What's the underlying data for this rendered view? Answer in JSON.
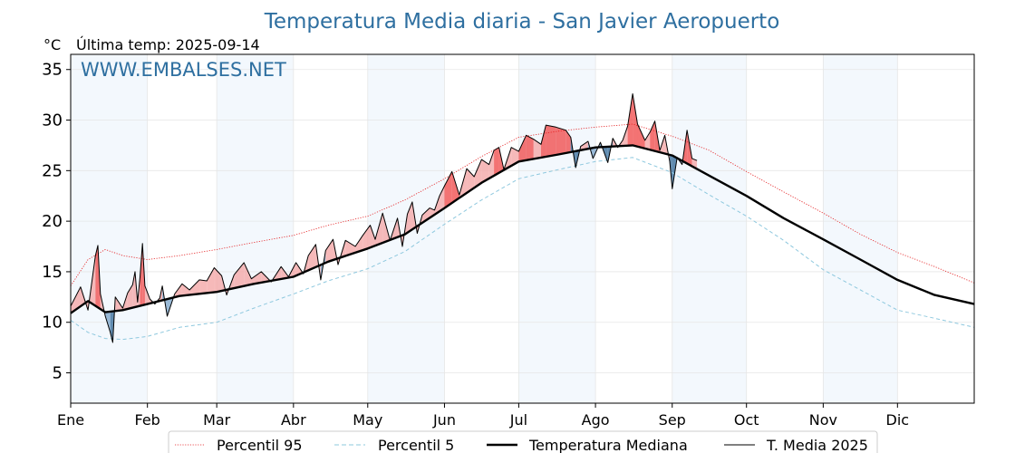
{
  "chart_data": {
    "type": "line",
    "title": "Temperatura Media diaria - San Javier Aeropuerto",
    "unit_label": "°C",
    "subtitle": "Última temp: 2025-09-14",
    "watermark": "WWW.EMBALSES.NET",
    "ylim": [
      2,
      36.5
    ],
    "yticks": [
      5,
      10,
      15,
      20,
      25,
      30,
      35
    ],
    "xlim": [
      1,
      366
    ],
    "months": [
      {
        "label": "Ene",
        "start": 1
      },
      {
        "label": "Feb",
        "start": 32
      },
      {
        "label": "Mar",
        "start": 60
      },
      {
        "label": "Abr",
        "start": 91
      },
      {
        "label": "May",
        "start": 121
      },
      {
        "label": "Jun",
        "start": 152
      },
      {
        "label": "Jul",
        "start": 182
      },
      {
        "label": "Ago",
        "start": 213
      },
      {
        "label": "Sep",
        "start": 244
      },
      {
        "label": "Oct",
        "start": 274
      },
      {
        "label": "Nov",
        "start": 305
      },
      {
        "label": "Dic",
        "start": 335
      }
    ],
    "grid": true,
    "legend_position": "bottom",
    "series": [
      {
        "name": "Percentil 95",
        "key": "p95",
        "style": "dotted",
        "color": "#e41a1c",
        "points": [
          [
            1,
            13.6
          ],
          [
            8,
            16.2
          ],
          [
            15,
            17.2
          ],
          [
            22,
            16.6
          ],
          [
            32,
            16.2
          ],
          [
            45,
            16.6
          ],
          [
            60,
            17.2
          ],
          [
            75,
            17.9
          ],
          [
            91,
            18.6
          ],
          [
            105,
            19.6
          ],
          [
            121,
            20.5
          ],
          [
            136,
            22.1
          ],
          [
            152,
            24.2
          ],
          [
            167,
            26.4
          ],
          [
            182,
            28.3
          ],
          [
            198,
            28.9
          ],
          [
            213,
            29.3
          ],
          [
            228,
            29.6
          ],
          [
            244,
            28.4
          ],
          [
            259,
            27.0
          ],
          [
            274,
            24.9
          ],
          [
            289,
            22.9
          ],
          [
            305,
            20.8
          ],
          [
            320,
            18.7
          ],
          [
            335,
            16.9
          ],
          [
            350,
            15.5
          ],
          [
            366,
            13.9
          ]
        ]
      },
      {
        "name": "Percentil 5",
        "key": "p5",
        "style": "dashed",
        "color": "#8ec8de",
        "points": [
          [
            1,
            10.2
          ],
          [
            8,
            9.0
          ],
          [
            15,
            8.4
          ],
          [
            22,
            8.3
          ],
          [
            32,
            8.6
          ],
          [
            45,
            9.5
          ],
          [
            60,
            10.0
          ],
          [
            75,
            11.4
          ],
          [
            91,
            12.8
          ],
          [
            105,
            14.1
          ],
          [
            121,
            15.3
          ],
          [
            136,
            17.0
          ],
          [
            152,
            19.7
          ],
          [
            167,
            22.1
          ],
          [
            182,
            24.2
          ],
          [
            198,
            25.1
          ],
          [
            213,
            25.9
          ],
          [
            228,
            26.3
          ],
          [
            244,
            24.8
          ],
          [
            259,
            22.6
          ],
          [
            274,
            20.5
          ],
          [
            289,
            18.1
          ],
          [
            305,
            15.2
          ],
          [
            320,
            13.2
          ],
          [
            335,
            11.2
          ],
          [
            350,
            10.4
          ],
          [
            366,
            9.5
          ]
        ]
      },
      {
        "name": "Temperatura Mediana",
        "key": "median",
        "style": "solid-thick",
        "color": "#000000",
        "points": [
          [
            1,
            10.9
          ],
          [
            8,
            12.1
          ],
          [
            15,
            11.0
          ],
          [
            22,
            11.2
          ],
          [
            32,
            11.8
          ],
          [
            45,
            12.6
          ],
          [
            60,
            13.0
          ],
          [
            75,
            13.8
          ],
          [
            91,
            14.5
          ],
          [
            105,
            16.0
          ],
          [
            121,
            17.3
          ],
          [
            136,
            18.7
          ],
          [
            152,
            21.3
          ],
          [
            167,
            23.8
          ],
          [
            182,
            25.9
          ],
          [
            198,
            26.6
          ],
          [
            213,
            27.3
          ],
          [
            228,
            27.5
          ],
          [
            244,
            26.5
          ],
          [
            259,
            24.5
          ],
          [
            274,
            22.5
          ],
          [
            289,
            20.3
          ],
          [
            305,
            18.2
          ],
          [
            320,
            16.2
          ],
          [
            335,
            14.2
          ],
          [
            350,
            12.7
          ],
          [
            366,
            11.8
          ]
        ]
      },
      {
        "name": "T. Media 2025",
        "key": "y2025",
        "style": "solid-thin",
        "color": "#000000",
        "points": [
          [
            1,
            11.6
          ],
          [
            5,
            13.5
          ],
          [
            8,
            11.2
          ],
          [
            11,
            16.6
          ],
          [
            12,
            17.6
          ],
          [
            13,
            12.8
          ],
          [
            15,
            10.6
          ],
          [
            17,
            9.0
          ],
          [
            18,
            8.0
          ],
          [
            19,
            12.5
          ],
          [
            22,
            11.4
          ],
          [
            24,
            12.9
          ],
          [
            26,
            13.7
          ],
          [
            27,
            15.0
          ],
          [
            28,
            12.0
          ],
          [
            29,
            14.5
          ],
          [
            30,
            17.8
          ],
          [
            31,
            13.6
          ],
          [
            33,
            12.3
          ],
          [
            35,
            11.8
          ],
          [
            37,
            12.4
          ],
          [
            38,
            13.6
          ],
          [
            40,
            10.6
          ],
          [
            43,
            12.8
          ],
          [
            46,
            13.8
          ],
          [
            49,
            13.2
          ],
          [
            53,
            14.2
          ],
          [
            56,
            14.1
          ],
          [
            59,
            15.4
          ],
          [
            62,
            14.6
          ],
          [
            64,
            12.7
          ],
          [
            67,
            14.7
          ],
          [
            71,
            15.9
          ],
          [
            74,
            14.3
          ],
          [
            78,
            15.0
          ],
          [
            82,
            14.0
          ],
          [
            86,
            15.5
          ],
          [
            89,
            14.5
          ],
          [
            92,
            15.9
          ],
          [
            95,
            14.8
          ],
          [
            97,
            16.6
          ],
          [
            100,
            17.7
          ],
          [
            102,
            14.2
          ],
          [
            104,
            17.1
          ],
          [
            107,
            18.2
          ],
          [
            109,
            15.7
          ],
          [
            112,
            18.1
          ],
          [
            116,
            17.5
          ],
          [
            119,
            18.6
          ],
          [
            122,
            19.6
          ],
          [
            124,
            18.2
          ],
          [
            127,
            20.8
          ],
          [
            130,
            18.1
          ],
          [
            133,
            20.3
          ],
          [
            135,
            17.5
          ],
          [
            137,
            20.7
          ],
          [
            139,
            21.9
          ],
          [
            141,
            18.8
          ],
          [
            143,
            20.6
          ],
          [
            146,
            21.3
          ],
          [
            148,
            21.1
          ],
          [
            150,
            22.5
          ],
          [
            152,
            23.5
          ],
          [
            155,
            24.9
          ],
          [
            158,
            22.6
          ],
          [
            161,
            25.2
          ],
          [
            164,
            24.4
          ],
          [
            167,
            26.1
          ],
          [
            170,
            25.6
          ],
          [
            172,
            27.0
          ],
          [
            174,
            27.3
          ],
          [
            176,
            25.1
          ],
          [
            179,
            27.3
          ],
          [
            182,
            26.9
          ],
          [
            185,
            28.5
          ],
          [
            188,
            28.1
          ],
          [
            191,
            27.6
          ],
          [
            193,
            29.5
          ],
          [
            197,
            29.3
          ],
          [
            201,
            29.0
          ],
          [
            203,
            28.3
          ],
          [
            205,
            25.3
          ],
          [
            207,
            27.4
          ],
          [
            210,
            27.9
          ],
          [
            212,
            26.2
          ],
          [
            215,
            27.8
          ],
          [
            218,
            25.8
          ],
          [
            220,
            28.2
          ],
          [
            222,
            27.3
          ],
          [
            224,
            28.0
          ],
          [
            226,
            29.4
          ],
          [
            228,
            32.6
          ],
          [
            230,
            29.6
          ],
          [
            233,
            28.0
          ],
          [
            235,
            28.8
          ],
          [
            237,
            29.9
          ],
          [
            239,
            27.0
          ],
          [
            241,
            28.5
          ],
          [
            243,
            25.9
          ],
          [
            244,
            23.2
          ],
          [
            246,
            26.3
          ],
          [
            248,
            25.6
          ],
          [
            250,
            29.0
          ],
          [
            252,
            26.2
          ],
          [
            254,
            26.0
          ]
        ]
      }
    ]
  },
  "legend": {
    "items": [
      {
        "label": "Percentil 95"
      },
      {
        "label": "Percentil 5"
      },
      {
        "label": "Temperatura Mediana"
      },
      {
        "label": "T. Media 2025"
      }
    ]
  }
}
